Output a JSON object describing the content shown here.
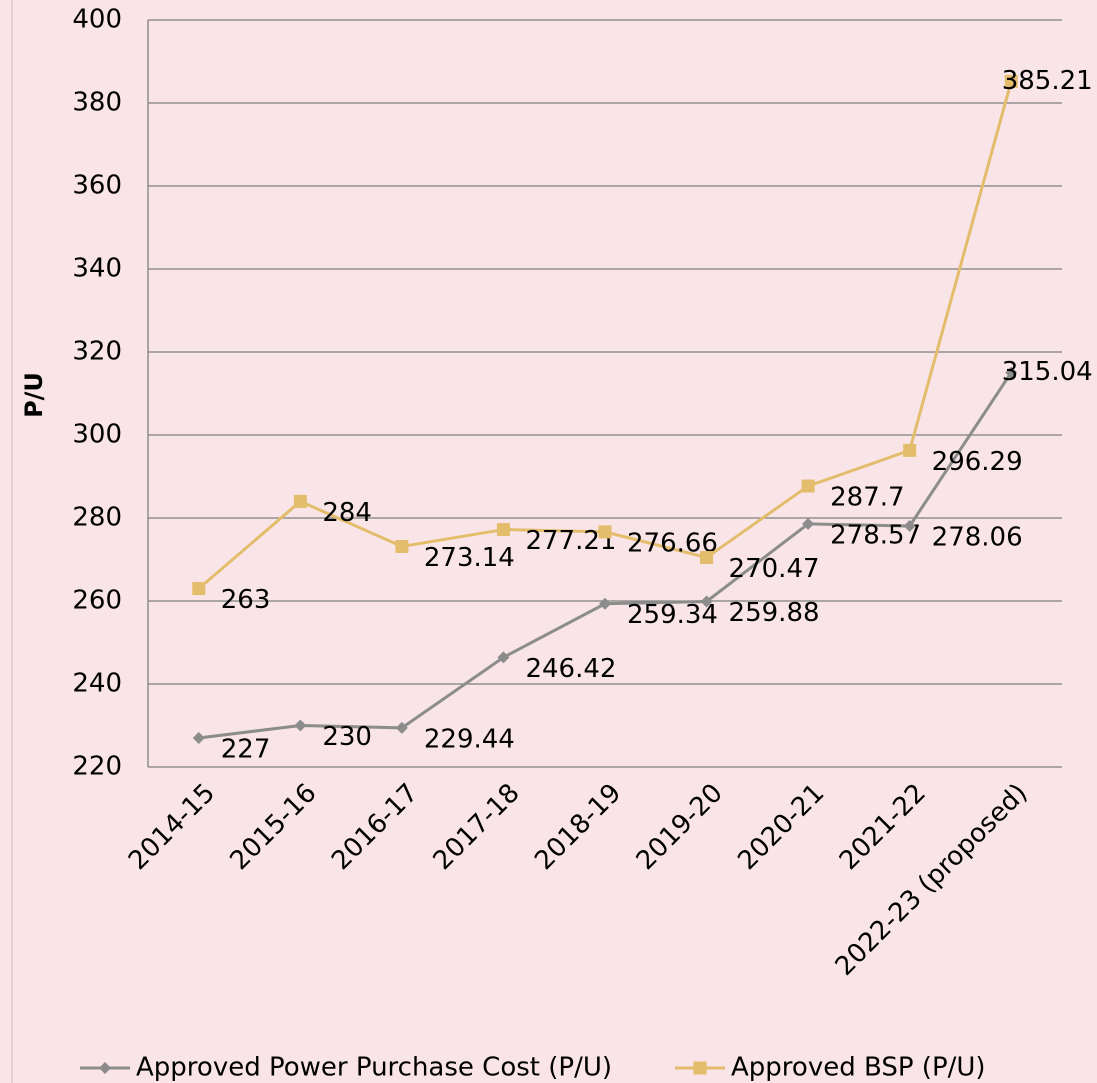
{
  "chart_data": {
    "type": "line",
    "y_label": "P/U",
    "categories": [
      "2014-15",
      "2015-16",
      "2016-17",
      "2017-18",
      "2018-19",
      "2019-20",
      "2020-21",
      "2021-22",
      "2022-23 (proposed)"
    ],
    "series": [
      {
        "name": "Approved Power Purchase Cost (P/U)",
        "color": "#8c8c8c",
        "marker": "diamond",
        "values": [
          227,
          230,
          229.44,
          246.42,
          259.34,
          259.88,
          278.57,
          278.06,
          315.04
        ]
      },
      {
        "name": "Approved BSP (P/U)",
        "color": "#e3bd6c",
        "marker": "square",
        "values": [
          263,
          284,
          273.14,
          277.21,
          276.66,
          270.47,
          287.7,
          296.29,
          385.21
        ]
      }
    ],
    "ylim": [
      220,
      400
    ],
    "yticks": [
      220,
      240,
      260,
      280,
      300,
      320,
      340,
      360,
      380,
      400
    ],
    "grid": true,
    "legend": "bottom"
  }
}
